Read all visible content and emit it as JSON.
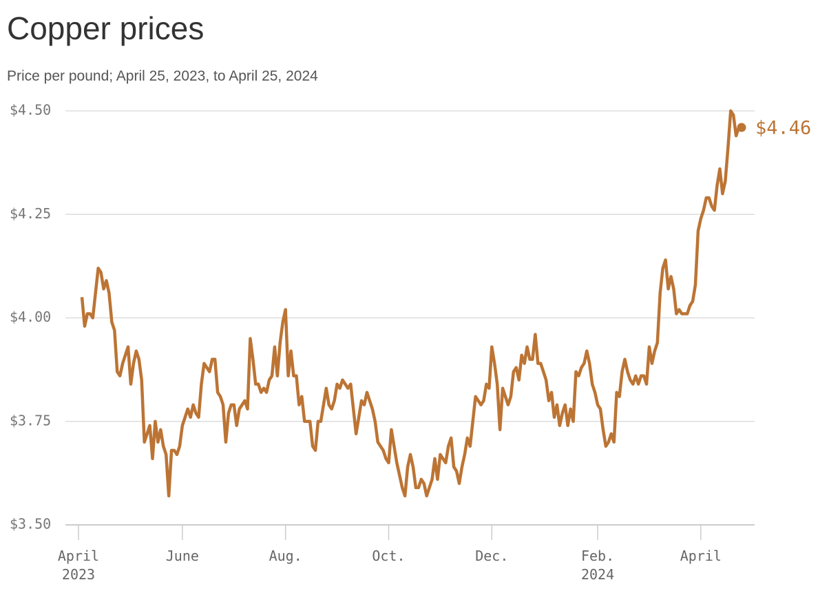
{
  "chart_data": {
    "type": "line",
    "title": "Copper prices",
    "subtitle": "Price per pound; April 25, 2023, to April 25, 2024",
    "categories": [
      "April\n2023",
      null,
      null,
      null,
      null,
      null,
      null,
      null,
      null,
      null,
      null,
      null,
      null,
      null,
      null,
      null,
      null,
      null,
      null,
      null,
      null,
      null,
      null,
      null,
      null,
      null,
      null,
      null,
      null,
      null,
      null,
      null,
      null,
      null,
      null,
      null,
      null,
      "June",
      null,
      null,
      null,
      null,
      null,
      null,
      null,
      null,
      null,
      null,
      null,
      null,
      null,
      null,
      null,
      null,
      null,
      null,
      null,
      null,
      null,
      null,
      null,
      null,
      null,
      null,
      null,
      null,
      null,
      null,
      null,
      null,
      null,
      null,
      null,
      null,
      null,
      "Aug.",
      null,
      null,
      null,
      null,
      null,
      null,
      null,
      null,
      null,
      null,
      null,
      null,
      null,
      null,
      null,
      null,
      null,
      null,
      null,
      null,
      null,
      null,
      null,
      null,
      null,
      null,
      null,
      null,
      null,
      null,
      null,
      null,
      null,
      null,
      null,
      null,
      null,
      "Oct.",
      null,
      null,
      null,
      null,
      null,
      null,
      null,
      null,
      null,
      null,
      null,
      null,
      null,
      null,
      null,
      null,
      null,
      null,
      null,
      null,
      null,
      null,
      null,
      null,
      null,
      null,
      null,
      null,
      null,
      null,
      null,
      null,
      null,
      null,
      null,
      null,
      null,
      "Dec.",
      null,
      null,
      null,
      null,
      null,
      null,
      null,
      null,
      null,
      null,
      null,
      null,
      null,
      null,
      null,
      null,
      null,
      null,
      null,
      null,
      null,
      null,
      null,
      null,
      null,
      null,
      null,
      null,
      null,
      null,
      null,
      null,
      null,
      null,
      null,
      null,
      null,
      null,
      "Feb.\n2024",
      null,
      null,
      null,
      null,
      null,
      null,
      null,
      null,
      null,
      null,
      null,
      null,
      null,
      null,
      null,
      null,
      null,
      null,
      null,
      null,
      null,
      null,
      null,
      null,
      null,
      null,
      null,
      null,
      null,
      null,
      null,
      null,
      null,
      null,
      null,
      null,
      null,
      "April",
      null,
      null,
      null,
      null,
      null,
      null,
      null,
      null,
      null,
      null,
      null,
      null,
      null,
      null,
      null
    ],
    "series": [
      {
        "name": "Copper",
        "color": "#bc7434",
        "values": [
          4.05,
          3.98,
          4.01,
          4.01,
          4.0,
          4.06,
          4.12,
          4.11,
          4.07,
          4.09,
          4.06,
          3.99,
          3.97,
          3.87,
          3.86,
          3.89,
          3.91,
          3.93,
          3.84,
          3.89,
          3.92,
          3.9,
          3.85,
          3.7,
          3.72,
          3.74,
          3.66,
          3.75,
          3.7,
          3.73,
          3.69,
          3.67,
          3.57,
          3.68,
          3.68,
          3.67,
          3.69,
          3.74,
          3.76,
          3.78,
          3.76,
          3.79,
          3.77,
          3.76,
          3.84,
          3.89,
          3.88,
          3.87,
          3.9,
          3.9,
          3.82,
          3.81,
          3.79,
          3.7,
          3.77,
          3.79,
          3.79,
          3.74,
          3.78,
          3.79,
          3.8,
          3.78,
          3.95,
          3.9,
          3.84,
          3.84,
          3.82,
          3.83,
          3.82,
          3.85,
          3.86,
          3.93,
          3.86,
          3.94,
          3.99,
          4.02,
          3.86,
          3.92,
          3.86,
          3.86,
          3.79,
          3.81,
          3.75,
          3.75,
          3.75,
          3.69,
          3.68,
          3.75,
          3.75,
          3.79,
          3.83,
          3.79,
          3.78,
          3.8,
          3.84,
          3.83,
          3.85,
          3.84,
          3.83,
          3.84,
          3.78,
          3.72,
          3.76,
          3.8,
          3.79,
          3.82,
          3.8,
          3.78,
          3.75,
          3.7,
          3.69,
          3.68,
          3.66,
          3.65,
          3.73,
          3.69,
          3.65,
          3.62,
          3.59,
          3.57,
          3.64,
          3.67,
          3.64,
          3.59,
          3.59,
          3.61,
          3.6,
          3.57,
          3.59,
          3.61,
          3.66,
          3.61,
          3.67,
          3.66,
          3.65,
          3.69,
          3.71,
          3.64,
          3.63,
          3.6,
          3.64,
          3.67,
          3.71,
          3.69,
          3.75,
          3.81,
          3.8,
          3.79,
          3.8,
          3.84,
          3.83,
          3.93,
          3.89,
          3.84,
          3.73,
          3.83,
          3.81,
          3.79,
          3.81,
          3.87,
          3.88,
          3.85,
          3.91,
          3.89,
          3.93,
          3.9,
          3.9,
          3.96,
          3.89,
          3.89,
          3.87,
          3.85,
          3.8,
          3.82,
          3.76,
          3.79,
          3.74,
          3.77,
          3.79,
          3.74,
          3.78,
          3.75,
          3.87,
          3.86,
          3.88,
          3.89,
          3.92,
          3.89,
          3.84,
          3.82,
          3.79,
          3.78,
          3.73,
          3.69,
          3.7,
          3.72,
          3.7,
          3.82,
          3.81,
          3.87,
          3.9,
          3.87,
          3.85,
          3.84,
          3.86,
          3.84,
          3.86,
          3.86,
          3.84,
          3.93,
          3.89,
          3.92,
          3.94,
          4.06,
          4.12,
          4.14,
          4.07,
          4.1,
          4.07,
          4.01,
          4.02,
          4.01,
          4.01,
          4.01,
          4.03,
          4.04,
          4.08,
          4.21,
          4.24,
          4.26,
          4.29,
          4.29,
          4.27,
          4.26,
          4.32,
          4.36,
          4.3,
          4.33,
          4.41,
          4.5,
          4.49,
          4.44,
          4.46,
          4.46
        ],
        "value_labels": [
          null,
          null,
          null,
          null,
          null,
          null,
          null,
          null,
          null,
          null,
          null,
          null,
          null,
          null,
          null,
          null,
          null,
          null,
          null,
          null,
          null,
          null,
          null,
          null,
          null,
          null,
          null,
          null,
          null,
          null,
          null,
          null,
          null,
          null,
          null,
          null,
          null,
          null,
          null,
          null,
          null,
          null,
          null,
          null,
          null,
          null,
          null,
          null,
          null,
          null,
          null,
          null,
          null,
          null,
          null,
          null,
          null,
          null,
          null,
          null,
          null,
          null,
          null,
          null,
          null,
          null,
          null,
          null,
          null,
          null,
          null,
          null,
          null,
          null,
          null,
          null,
          null,
          null,
          null,
          null,
          null,
          null,
          null,
          null,
          null,
          null,
          null,
          null,
          null,
          null,
          null,
          null,
          null,
          null,
          null,
          null,
          null,
          null,
          null,
          null,
          null,
          null,
          null,
          null,
          null,
          null,
          null,
          null,
          null,
          null,
          null,
          null,
          null,
          null,
          null,
          null,
          null,
          null,
          null,
          null,
          null,
          null,
          null,
          null,
          null,
          null,
          null,
          null,
          null,
          null,
          null,
          null,
          null,
          null,
          null,
          null,
          null,
          null,
          null,
          null,
          null,
          null,
          null,
          null,
          null,
          null,
          null,
          null,
          null,
          null,
          null,
          null,
          null,
          null,
          null,
          null,
          null,
          null,
          null,
          null,
          null,
          null,
          null,
          null,
          null,
          null,
          null,
          null,
          null,
          null,
          null,
          null,
          null,
          null,
          null,
          null,
          null,
          null,
          null,
          null,
          null,
          null,
          null,
          null,
          null,
          null,
          null,
          null,
          null,
          null,
          null,
          null,
          null,
          null,
          null,
          null,
          null,
          null,
          null,
          null,
          null,
          null,
          null,
          null,
          null,
          null,
          null,
          null,
          null,
          null,
          null,
          null,
          null,
          null,
          null,
          null,
          null,
          null,
          null,
          null,
          null,
          null,
          null,
          null,
          null,
          null,
          null,
          null,
          null,
          null,
          null,
          null,
          null,
          null,
          null,
          null,
          null,
          null,
          null,
          null,
          null,
          null,
          null,
          "$4.46"
        ]
      }
    ],
    "ylim": [
      3.5,
      4.5
    ],
    "yticks": [
      {
        "value": 3.5,
        "label": "$3.50"
      },
      {
        "value": 3.75,
        "label": "$3.75"
      },
      {
        "value": 4.0,
        "label": "$4.00"
      },
      {
        "value": 4.25,
        "label": "$4.25"
      },
      {
        "value": 4.5,
        "label": "$4.50"
      }
    ],
    "grid": true
  }
}
